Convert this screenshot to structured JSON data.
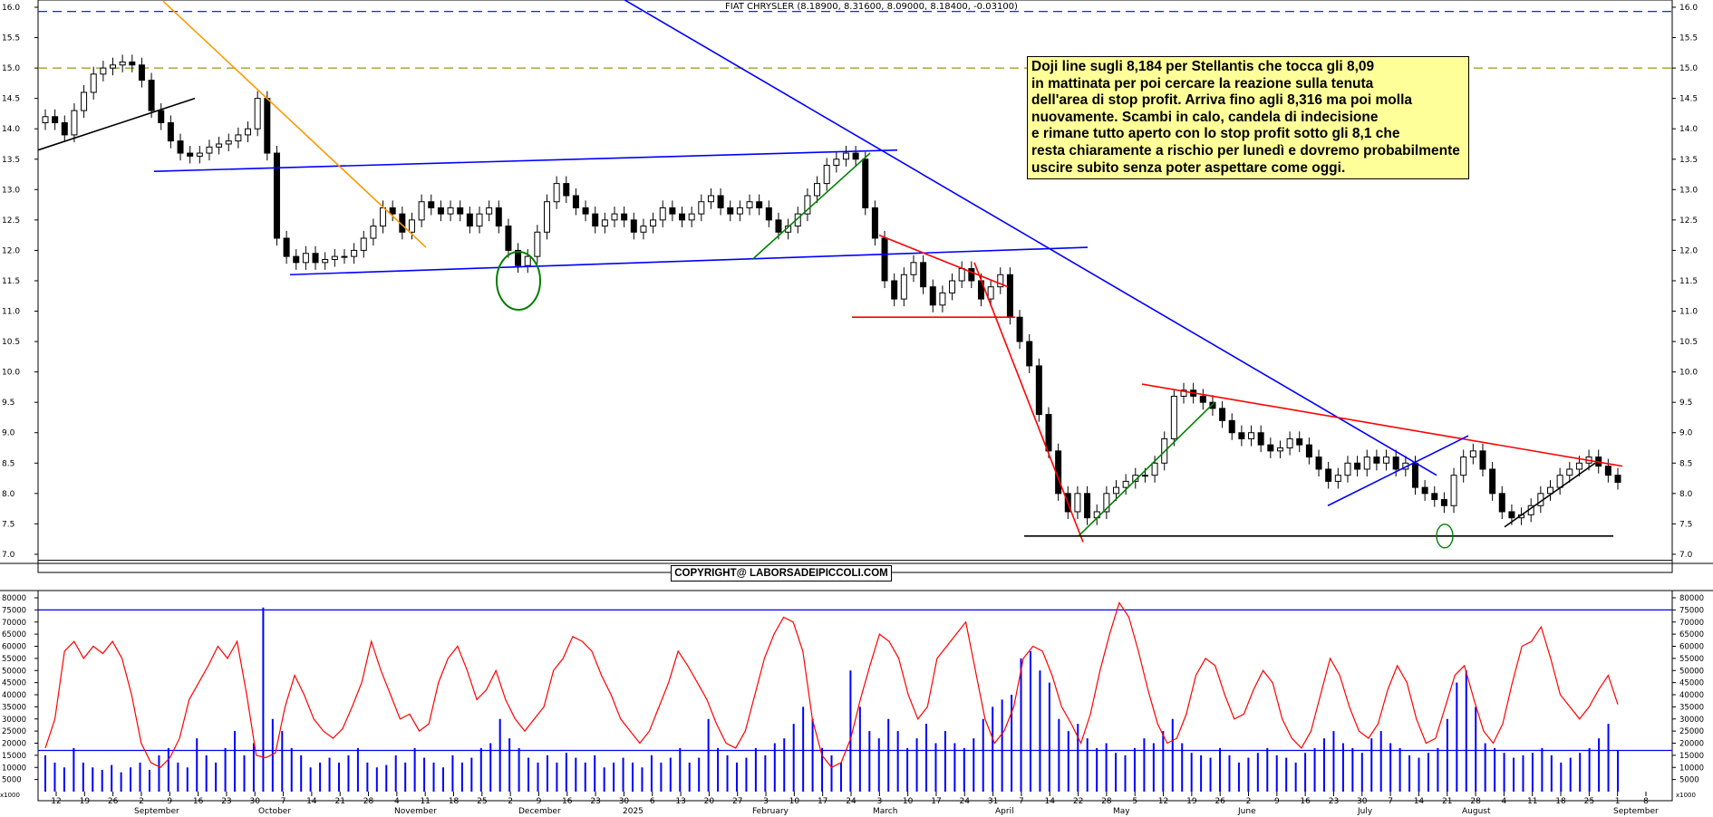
{
  "chart_data": [
    {
      "type": "candlestick",
      "title": "FIAT CHRYSLER (8.18900, 8.31600, 8.09000, 8.18400, -0.03100)",
      "ylim": [
        6.85,
        16.0
      ],
      "y_ticks": [
        "16.0",
        "15.5",
        "15.0",
        "14.5",
        "14.0",
        "13.5",
        "13.0",
        "12.5",
        "12.0",
        "11.5",
        "11.0",
        "10.5",
        "10.0",
        "9.5",
        "9.0",
        "8.5",
        "8.0",
        "7.5",
        "7.0"
      ],
      "x_ticks": [
        "12",
        "19",
        "26",
        "2",
        "9",
        "16",
        "23",
        "30",
        "7",
        "14",
        "21",
        "28",
        "4",
        "11",
        "18",
        "25",
        "2",
        "9",
        "16",
        "23",
        "30",
        "6",
        "13",
        "20",
        "27",
        "3",
        "10",
        "17",
        "24",
        "3",
        "10",
        "17",
        "24",
        "31",
        "7",
        "14",
        "22",
        "28",
        "5",
        "12",
        "19",
        "26",
        "2",
        "9",
        "16",
        "23",
        "30",
        "7",
        "14",
        "21",
        "28",
        "4",
        "11",
        "18",
        "25",
        "1",
        "8"
      ],
      "x_month_labels": [
        "September",
        "October",
        "November",
        "December",
        "2025",
        "February",
        "March",
        "April",
        "May",
        "June",
        "July",
        "August",
        "September"
      ],
      "reference_levels": [
        15.93,
        15.0,
        6.9
      ],
      "close_series": [
        14.2,
        14.1,
        13.9,
        14.3,
        14.6,
        14.9,
        15.0,
        15.05,
        15.1,
        15.05,
        14.8,
        14.3,
        14.1,
        13.8,
        13.6,
        13.55,
        13.6,
        13.7,
        13.75,
        13.8,
        13.9,
        14.0,
        14.5,
        13.6,
        12.2,
        11.9,
        11.8,
        11.95,
        11.8,
        11.85,
        11.9,
        11.9,
        12.0,
        12.2,
        12.4,
        12.7,
        12.6,
        12.3,
        12.5,
        12.8,
        12.7,
        12.6,
        12.7,
        12.6,
        12.4,
        12.6,
        12.7,
        12.4,
        12.0,
        11.75,
        11.9,
        12.3,
        12.8,
        13.1,
        12.9,
        12.7,
        12.6,
        12.4,
        12.5,
        12.6,
        12.5,
        12.3,
        12.4,
        12.5,
        12.7,
        12.6,
        12.5,
        12.6,
        12.8,
        12.9,
        12.7,
        12.6,
        12.7,
        12.8,
        12.7,
        12.5,
        12.3,
        12.4,
        12.6,
        12.9,
        13.1,
        13.4,
        13.5,
        13.6,
        13.5,
        12.7,
        12.2,
        11.5,
        11.2,
        11.6,
        11.8,
        11.4,
        11.1,
        11.3,
        11.5,
        11.7,
        11.5,
        11.2,
        11.4,
        11.6,
        10.9,
        10.5,
        10.1,
        9.3,
        8.7,
        8.0,
        7.7,
        8.0,
        7.6,
        7.7,
        8.0,
        8.1,
        8.2,
        8.3,
        8.3,
        8.5,
        8.9,
        9.6,
        9.7,
        9.6,
        9.5,
        9.4,
        9.2,
        9.0,
        8.9,
        9.0,
        8.8,
        8.7,
        8.75,
        8.9,
        8.8,
        8.6,
        8.4,
        8.2,
        8.3,
        8.5,
        8.4,
        8.6,
        8.5,
        8.6,
        8.4,
        8.5,
        8.1,
        8.0,
        7.9,
        7.8,
        8.3,
        8.6,
        8.7,
        8.4,
        8.0,
        7.7,
        7.6,
        7.65,
        7.8,
        8.0,
        8.1,
        8.3,
        8.4,
        8.5,
        8.6,
        8.45,
        8.3,
        8.184
      ],
      "annotations": [
        "Doji line sugli 8,184 per  Stellantis che tocca gli 8,09",
        "in mattinata per poi cercare la reazione sulla tenuta",
        "dell'area di stop profit. Arriva fino agli 8,316 ma poi molla",
        "nuovamente. Scambi in calo, candela di indecisione",
        "e rimane tutto aperto con lo stop profit sotto gli 8,1 che",
        "resta chiaramente a rischio per lunedì e dovremo probabilmente",
        "uscire subito senza poter aspettare come oggi."
      ],
      "colors": {
        "resistance": "#ff0000",
        "trend": "#0000ff",
        "support": "#008000",
        "fast_trend": "#ff9900",
        "candle": "#000000",
        "reference_dash": "#0000ff",
        "reference_gold": "#999900"
      }
    },
    {
      "type": "bar",
      "subtype": "volume-with-oscillator",
      "ylim": [
        0,
        80000
      ],
      "y_ticks": [
        "80000",
        "75000",
        "70000",
        "65000",
        "60000",
        "55000",
        "50000",
        "45000",
        "40000",
        "35000",
        "30000",
        "25000",
        "20000",
        "15000",
        "10000",
        "5000"
      ],
      "axis_unit_label": "x1000",
      "reference_levels": [
        75000,
        17000
      ],
      "volume_series": [
        15000,
        12000,
        10000,
        18000,
        12000,
        10000,
        9000,
        11000,
        8000,
        10000,
        12000,
        9000,
        15000,
        18000,
        12000,
        10000,
        22000,
        15000,
        12000,
        18000,
        25000,
        15000,
        20000,
        76000,
        30000,
        25000,
        18000,
        15000,
        10000,
        12000,
        14000,
        12000,
        15000,
        18000,
        12000,
        10000,
        11000,
        15000,
        12000,
        18000,
        14000,
        12000,
        10000,
        15000,
        12000,
        14000,
        18000,
        20000,
        30000,
        22000,
        18000,
        14000,
        12000,
        15000,
        12000,
        16000,
        14000,
        12000,
        15000,
        10000,
        12000,
        14000,
        12000,
        10000,
        15000,
        12000,
        14000,
        18000,
        12000,
        14000,
        30000,
        18000,
        15000,
        12000,
        14000,
        18000,
        15000,
        20000,
        22000,
        28000,
        35000,
        30000,
        18000,
        15000,
        12000,
        50000,
        35000,
        25000,
        22000,
        30000,
        25000,
        18000,
        22000,
        28000,
        20000,
        25000,
        20000,
        18000,
        22000,
        30000,
        35000,
        38000,
        40000,
        55000,
        58000,
        50000,
        45000,
        30000,
        25000,
        28000,
        22000,
        18000,
        20000,
        16000,
        15000,
        18000,
        22000,
        20000,
        25000,
        30000,
        20000,
        16000,
        15000,
        14000,
        18000,
        15000,
        12000,
        14000,
        16000,
        18000,
        15000,
        14000,
        12000,
        16000,
        18000,
        22000,
        25000,
        20000,
        18000,
        16000,
        22000,
        25000,
        20000,
        18000,
        15000,
        14000,
        16000,
        18000,
        30000,
        45000,
        50000,
        35000,
        20000,
        18000,
        16000,
        14000,
        15000,
        16000,
        18000,
        15000,
        12000,
        14000,
        16000,
        18000,
        22000,
        28000,
        17000
      ],
      "oscillator_series": [
        18000,
        30000,
        58000,
        62000,
        55000,
        60000,
        57000,
        62000,
        55000,
        40000,
        20000,
        12000,
        10000,
        14000,
        22000,
        38000,
        45000,
        52000,
        60000,
        55000,
        62000,
        40000,
        15000,
        14000,
        16000,
        35000,
        48000,
        40000,
        30000,
        25000,
        22000,
        26000,
        35000,
        45000,
        62000,
        50000,
        40000,
        30000,
        32000,
        25000,
        28000,
        45000,
        55000,
        60000,
        50000,
        38000,
        42000,
        50000,
        38000,
        30000,
        25000,
        30000,
        35000,
        50000,
        55000,
        64000,
        62000,
        58000,
        48000,
        40000,
        30000,
        25000,
        20000,
        25000,
        35000,
        45000,
        58000,
        52000,
        45000,
        38000,
        28000,
        20000,
        18000,
        25000,
        40000,
        55000,
        65000,
        72000,
        70000,
        58000,
        30000,
        15000,
        10000,
        12000,
        22000,
        38000,
        52000,
        65000,
        62000,
        55000,
        40000,
        30000,
        35000,
        55000,
        60000,
        65000,
        70000,
        50000,
        30000,
        20000,
        25000,
        35000,
        55000,
        60000,
        58000,
        48000,
        35000,
        28000,
        20000,
        32000,
        50000,
        65000,
        78000,
        72000,
        58000,
        42000,
        28000,
        20000,
        22000,
        32000,
        48000,
        55000,
        52000,
        40000,
        30000,
        32000,
        42000,
        50000,
        45000,
        30000,
        22000,
        18000,
        25000,
        40000,
        55000,
        48000,
        35000,
        25000,
        22000,
        28000,
        42000,
        52000,
        45000,
        30000,
        20000,
        22000,
        35000,
        48000,
        52000,
        38000,
        25000,
        20000,
        28000,
        45000,
        60000,
        62000,
        68000,
        55000,
        40000,
        35000,
        30000,
        35000,
        42000,
        48000,
        36000
      ]
    }
  ],
  "ui": {
    "title": "FIAT CHRYSLER (8.18900, 8.31600, 8.09000, 8.18400, -0.03100)",
    "copyright": "COPYRIGHT@ LABORSADEIPICCOLI.COM"
  }
}
